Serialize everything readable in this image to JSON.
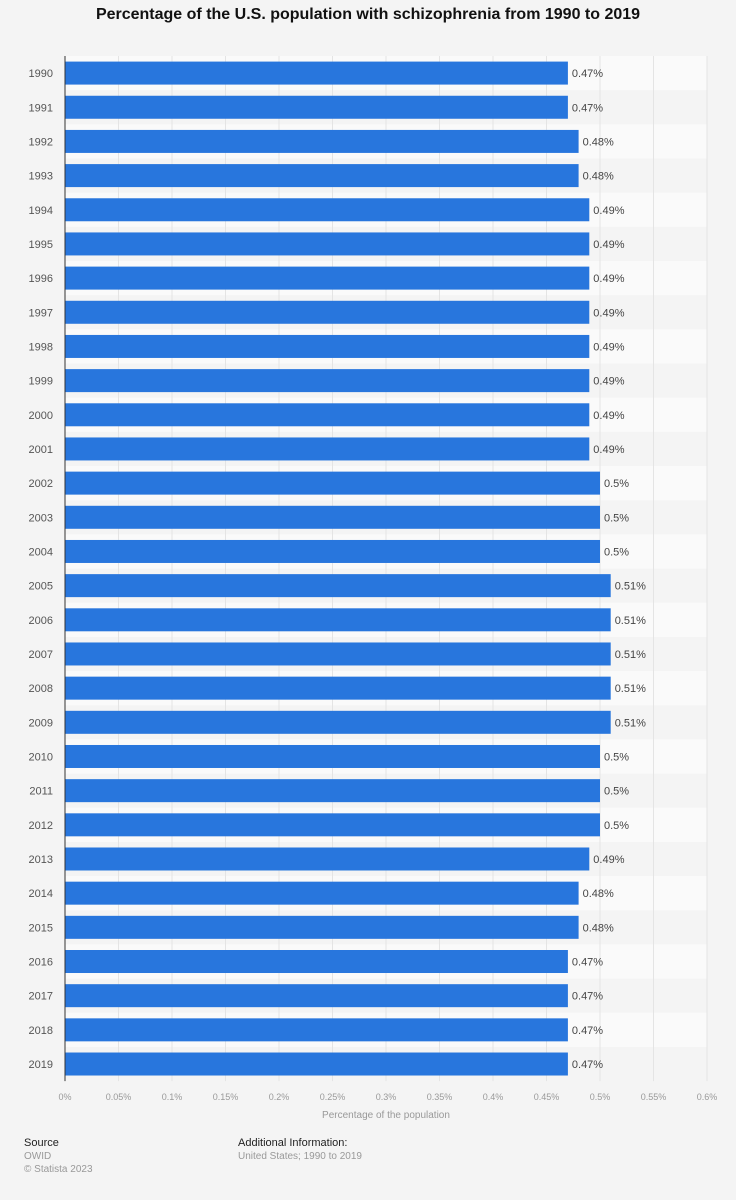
{
  "chart_data": {
    "type": "bar",
    "orientation": "horizontal",
    "title": "Percentage of the U.S. population with schizophrenia from 1990 to 2019",
    "xlabel": "Percentage of the population",
    "ylabel": "",
    "xlim": [
      0,
      0.6
    ],
    "xticks": [
      "0%",
      "0.05%",
      "0.1%",
      "0.15%",
      "0.2%",
      "0.25%",
      "0.3%",
      "0.35%",
      "0.4%",
      "0.45%",
      "0.5%",
      "0.55%",
      "0.6%"
    ],
    "categories": [
      "1990",
      "1991",
      "1992",
      "1993",
      "1994",
      "1995",
      "1996",
      "1997",
      "1998",
      "1999",
      "2000",
      "2001",
      "2002",
      "2003",
      "2004",
      "2005",
      "2006",
      "2007",
      "2008",
      "2009",
      "2010",
      "2011",
      "2012",
      "2013",
      "2014",
      "2015",
      "2016",
      "2017",
      "2018",
      "2019"
    ],
    "values": [
      0.47,
      0.47,
      0.48,
      0.48,
      0.49,
      0.49,
      0.49,
      0.49,
      0.49,
      0.49,
      0.49,
      0.49,
      0.5,
      0.5,
      0.5,
      0.51,
      0.51,
      0.51,
      0.51,
      0.51,
      0.5,
      0.5,
      0.5,
      0.49,
      0.48,
      0.48,
      0.47,
      0.47,
      0.47,
      0.47
    ],
    "data_labels": [
      "0.47%",
      "0.47%",
      "0.48%",
      "0.48%",
      "0.49%",
      "0.49%",
      "0.49%",
      "0.49%",
      "0.49%",
      "0.49%",
      "0.49%",
      "0.49%",
      "0.5%",
      "0.5%",
      "0.5%",
      "0.51%",
      "0.51%",
      "0.51%",
      "0.51%",
      "0.51%",
      "0.5%",
      "0.5%",
      "0.5%",
      "0.49%",
      "0.48%",
      "0.48%",
      "0.47%",
      "0.47%",
      "0.47%",
      "0.47%"
    ],
    "bar_color": "#2876dd",
    "grid": true
  },
  "footer": {
    "source_label": "Source",
    "source": "OWID",
    "copyright": "© Statista 2023",
    "additional_label": "Additional Information:",
    "additional": "United States; 1990 to 2019"
  }
}
